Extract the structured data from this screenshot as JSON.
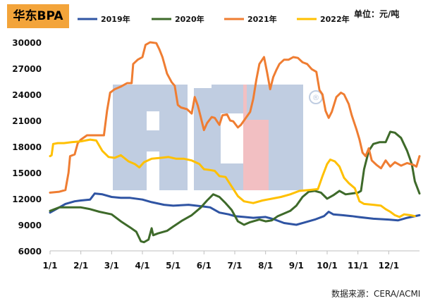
{
  "header": {
    "title": "华东BPA",
    "unit": "单位：元/吨"
  },
  "footer": {
    "source": "数据来源：CERA/ACMI"
  },
  "watermark": {
    "text": "ACMI",
    "mark": "®"
  },
  "chart_data": {
    "type": "line",
    "title": "华东BPA",
    "ylabel": "",
    "xlabel": "",
    "ylim": [
      6000,
      30000
    ],
    "yticks": [
      6000,
      9000,
      12000,
      15000,
      18000,
      21000,
      24000,
      27000,
      30000
    ],
    "x_domain": [
      0,
      12
    ],
    "xticks": [
      {
        "label": "1/1",
        "x": 0
      },
      {
        "label": "2/1",
        "x": 1
      },
      {
        "label": "3/1",
        "x": 2
      },
      {
        "label": "4/1",
        "x": 3
      },
      {
        "label": "5/1",
        "x": 4
      },
      {
        "label": "6/1",
        "x": 5
      },
      {
        "label": "7/1",
        "x": 6
      },
      {
        "label": "8/1",
        "x": 7
      },
      {
        "label": "9/1",
        "x": 8
      },
      {
        "label": "10/1",
        "x": 9
      },
      {
        "label": "11/1",
        "x": 10
      },
      {
        "label": "12/1",
        "x": 11
      }
    ],
    "legend_position": "top",
    "grid": false,
    "series": [
      {
        "name": "2019年",
        "color": "#2f54a3",
        "points": [
          [
            0,
            10400
          ],
          [
            0.2,
            10800
          ],
          [
            0.5,
            11400
          ],
          [
            0.8,
            11700
          ],
          [
            1.0,
            11800
          ],
          [
            1.3,
            11900
          ],
          [
            1.45,
            12600
          ],
          [
            1.7,
            12500
          ],
          [
            2.0,
            12200
          ],
          [
            2.3,
            12100
          ],
          [
            2.6,
            12100
          ],
          [
            3.0,
            11900
          ],
          [
            3.3,
            11600
          ],
          [
            3.7,
            11300
          ],
          [
            4.0,
            11200
          ],
          [
            4.5,
            11300
          ],
          [
            5.0,
            11100
          ],
          [
            5.2,
            11000
          ],
          [
            5.5,
            10400
          ],
          [
            5.8,
            10200
          ],
          [
            6.0,
            10000
          ],
          [
            6.3,
            9900
          ],
          [
            6.6,
            9800
          ],
          [
            7.0,
            9900
          ],
          [
            7.3,
            9600
          ],
          [
            7.6,
            9200
          ],
          [
            8.0,
            9000
          ],
          [
            8.3,
            9300
          ],
          [
            8.6,
            9600
          ],
          [
            8.9,
            10000
          ],
          [
            9.05,
            10500
          ],
          [
            9.2,
            10200
          ],
          [
            9.5,
            10100
          ],
          [
            9.8,
            10000
          ],
          [
            10.0,
            9900
          ],
          [
            10.5,
            9700
          ],
          [
            11.0,
            9600
          ],
          [
            11.3,
            9500
          ],
          [
            11.6,
            9800
          ],
          [
            12.0,
            10100
          ]
        ]
      },
      {
        "name": "2020年",
        "color": "#3e6a2a",
        "points": [
          [
            0,
            10600
          ],
          [
            0.3,
            11000
          ],
          [
            0.6,
            11000
          ],
          [
            1.0,
            11000
          ],
          [
            1.3,
            10800
          ],
          [
            1.6,
            10500
          ],
          [
            2.0,
            10200
          ],
          [
            2.3,
            9400
          ],
          [
            2.6,
            8700
          ],
          [
            2.8,
            8200
          ],
          [
            2.95,
            7100
          ],
          [
            3.05,
            7000
          ],
          [
            3.2,
            7300
          ],
          [
            3.3,
            8600
          ],
          [
            3.35,
            7800
          ],
          [
            3.5,
            8000
          ],
          [
            3.8,
            8300
          ],
          [
            4.0,
            8800
          ],
          [
            4.3,
            9500
          ],
          [
            4.6,
            10100
          ],
          [
            4.9,
            11000
          ],
          [
            5.1,
            11800
          ],
          [
            5.3,
            12500
          ],
          [
            5.5,
            12200
          ],
          [
            5.7,
            11500
          ],
          [
            5.9,
            10700
          ],
          [
            6.1,
            9400
          ],
          [
            6.3,
            9000
          ],
          [
            6.5,
            9300
          ],
          [
            6.8,
            9600
          ],
          [
            7.0,
            9400
          ],
          [
            7.2,
            9500
          ],
          [
            7.4,
            10000
          ],
          [
            7.6,
            10300
          ],
          [
            7.8,
            10600
          ],
          [
            8.0,
            11200
          ],
          [
            8.2,
            12200
          ],
          [
            8.4,
            12800
          ],
          [
            8.6,
            12900
          ],
          [
            8.8,
            12700
          ],
          [
            9.0,
            12000
          ],
          [
            9.2,
            12400
          ],
          [
            9.4,
            12900
          ],
          [
            9.6,
            12500
          ],
          [
            9.8,
            12600
          ],
          [
            10.0,
            12700
          ],
          [
            10.1,
            12900
          ],
          [
            10.2,
            15400
          ],
          [
            10.35,
            17500
          ],
          [
            10.5,
            18300
          ],
          [
            10.7,
            18500
          ],
          [
            10.9,
            18500
          ],
          [
            11.05,
            19700
          ],
          [
            11.2,
            19600
          ],
          [
            11.4,
            19000
          ],
          [
            11.6,
            17500
          ],
          [
            11.75,
            16000
          ],
          [
            11.85,
            14000
          ],
          [
            12.0,
            12600
          ]
        ]
      },
      {
        "name": "2021年",
        "color": "#ef7d32",
        "points": [
          [
            0,
            12700
          ],
          [
            0.3,
            12800
          ],
          [
            0.5,
            13000
          ],
          [
            0.6,
            15000
          ],
          [
            0.65,
            16900
          ],
          [
            0.8,
            17100
          ],
          [
            0.9,
            18400
          ],
          [
            1.0,
            18800
          ],
          [
            1.2,
            19300
          ],
          [
            1.5,
            19300
          ],
          [
            1.75,
            19300
          ],
          [
            1.85,
            22100
          ],
          [
            1.95,
            24200
          ],
          [
            2.1,
            24600
          ],
          [
            2.3,
            24900
          ],
          [
            2.5,
            25300
          ],
          [
            2.65,
            25300
          ],
          [
            2.7,
            27500
          ],
          [
            2.85,
            28000
          ],
          [
            3.0,
            28300
          ],
          [
            3.1,
            29700
          ],
          [
            3.25,
            30000
          ],
          [
            3.45,
            29900
          ],
          [
            3.55,
            29200
          ],
          [
            3.65,
            28300
          ],
          [
            3.8,
            26400
          ],
          [
            3.95,
            25400
          ],
          [
            4.05,
            25000
          ],
          [
            4.15,
            22800
          ],
          [
            4.25,
            22500
          ],
          [
            4.45,
            22300
          ],
          [
            4.6,
            21800
          ],
          [
            4.7,
            23700
          ],
          [
            4.8,
            22700
          ],
          [
            4.9,
            21300
          ],
          [
            5.0,
            19900
          ],
          [
            5.1,
            20700
          ],
          [
            5.25,
            21400
          ],
          [
            5.35,
            21300
          ],
          [
            5.5,
            20500
          ],
          [
            5.6,
            21600
          ],
          [
            5.75,
            21700
          ],
          [
            5.85,
            21000
          ],
          [
            5.95,
            20900
          ],
          [
            6.1,
            20200
          ],
          [
            6.2,
            20500
          ],
          [
            6.3,
            21000
          ],
          [
            6.5,
            22000
          ],
          [
            6.6,
            23500
          ],
          [
            6.7,
            25700
          ],
          [
            6.8,
            27500
          ],
          [
            6.95,
            28300
          ],
          [
            7.05,
            26500
          ],
          [
            7.15,
            24600
          ],
          [
            7.25,
            26000
          ],
          [
            7.35,
            26800
          ],
          [
            7.45,
            27500
          ],
          [
            7.6,
            28000
          ],
          [
            7.75,
            28000
          ],
          [
            7.9,
            28300
          ],
          [
            8.05,
            28200
          ],
          [
            8.2,
            27700
          ],
          [
            8.35,
            27500
          ],
          [
            8.5,
            26900
          ],
          [
            8.65,
            26600
          ],
          [
            8.75,
            24500
          ],
          [
            8.85,
            24000
          ],
          [
            8.95,
            22100
          ],
          [
            9.05,
            21300
          ],
          [
            9.15,
            22000
          ],
          [
            9.3,
            23700
          ],
          [
            9.45,
            24200
          ],
          [
            9.55,
            24000
          ],
          [
            9.7,
            22900
          ],
          [
            9.8,
            21600
          ],
          [
            9.95,
            20000
          ],
          [
            10.05,
            18800
          ],
          [
            10.15,
            17300
          ],
          [
            10.25,
            16900
          ],
          [
            10.35,
            17800
          ],
          [
            10.45,
            16400
          ],
          [
            10.6,
            15900
          ],
          [
            10.75,
            15500
          ],
          [
            10.9,
            16400
          ],
          [
            11.05,
            15700
          ],
          [
            11.2,
            16200
          ],
          [
            11.4,
            15800
          ],
          [
            11.6,
            16100
          ],
          [
            11.8,
            15900
          ],
          [
            11.9,
            15700
          ],
          [
            12.0,
            16900
          ]
        ]
      },
      {
        "name": "2022年",
        "color": "#ffc000",
        "points": [
          [
            0,
            16900
          ],
          [
            0.05,
            17000
          ],
          [
            0.1,
            18300
          ],
          [
            0.25,
            18400
          ],
          [
            0.45,
            18400
          ],
          [
            0.7,
            18500
          ],
          [
            1.0,
            18600
          ],
          [
            1.3,
            18800
          ],
          [
            1.5,
            18700
          ],
          [
            1.7,
            17500
          ],
          [
            1.9,
            16800
          ],
          [
            2.1,
            16700
          ],
          [
            2.3,
            17000
          ],
          [
            2.55,
            16300
          ],
          [
            2.75,
            16000
          ],
          [
            2.9,
            15600
          ],
          [
            3.05,
            16200
          ],
          [
            3.3,
            16600
          ],
          [
            3.6,
            16700
          ],
          [
            3.85,
            16800
          ],
          [
            4.1,
            16600
          ],
          [
            4.35,
            16600
          ],
          [
            4.6,
            16400
          ],
          [
            4.85,
            16000
          ],
          [
            5.0,
            15400
          ],
          [
            5.2,
            15300
          ],
          [
            5.35,
            15200
          ],
          [
            5.5,
            14600
          ],
          [
            5.7,
            14500
          ],
          [
            5.9,
            13400
          ],
          [
            6.1,
            12300
          ],
          [
            6.3,
            11700
          ],
          [
            6.6,
            11500
          ],
          [
            6.9,
            11800
          ],
          [
            7.2,
            12000
          ],
          [
            7.5,
            12200
          ],
          [
            7.8,
            12500
          ],
          [
            8.1,
            12900
          ],
          [
            8.4,
            13000
          ],
          [
            8.7,
            13100
          ],
          [
            8.85,
            14600
          ],
          [
            9.0,
            16000
          ],
          [
            9.1,
            16500
          ],
          [
            9.25,
            16300
          ],
          [
            9.4,
            15700
          ],
          [
            9.55,
            14400
          ],
          [
            9.7,
            13800
          ],
          [
            9.9,
            13200
          ],
          [
            10.05,
            11700
          ],
          [
            10.2,
            11400
          ],
          [
            10.5,
            11300
          ],
          [
            10.75,
            11200
          ],
          [
            10.9,
            10800
          ],
          [
            11.05,
            10500
          ],
          [
            11.2,
            10100
          ],
          [
            11.35,
            9900
          ],
          [
            11.5,
            10200
          ],
          [
            11.7,
            10100
          ],
          [
            11.85,
            10000
          ]
        ]
      }
    ]
  }
}
